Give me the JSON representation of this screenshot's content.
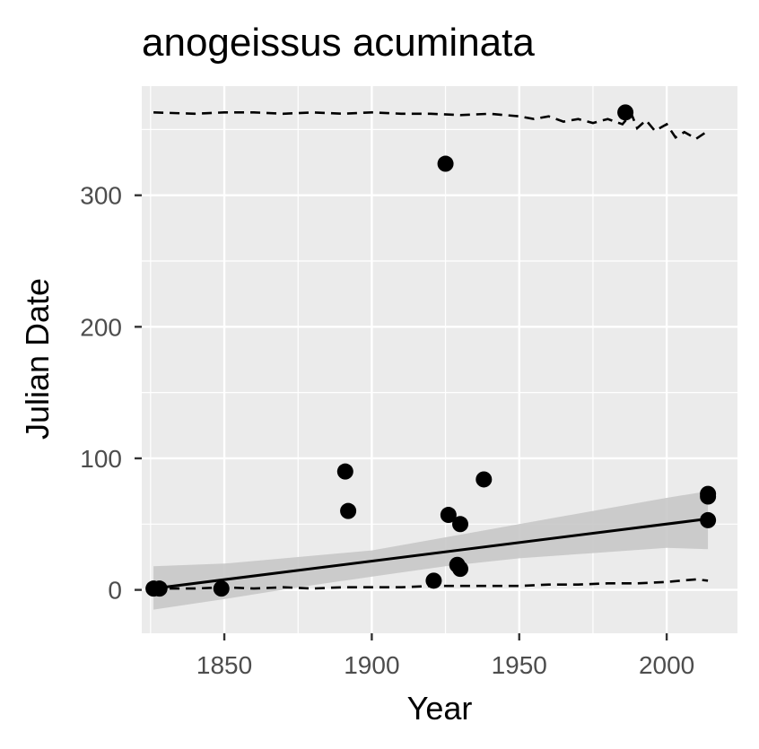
{
  "chart_data": {
    "type": "scatter",
    "title": "anogeissus acuminata",
    "xlabel": "Year",
    "ylabel": "Julian Date",
    "xlim": [
      1822,
      2024
    ],
    "ylim": [
      -33,
      383
    ],
    "x_ticks": [
      1850,
      1900,
      1950,
      2000
    ],
    "y_ticks": [
      0,
      100,
      200,
      300
    ],
    "grid": true,
    "legend": "none",
    "colors": {
      "panel": "#ebebeb",
      "grid": "#ffffff",
      "points": "#000000",
      "band": "#c8c8c8",
      "tick_text": "#4d4d4d"
    },
    "points": [
      {
        "x": 1826,
        "y": 1
      },
      {
        "x": 1828,
        "y": 1
      },
      {
        "x": 1849,
        "y": 1
      },
      {
        "x": 1891,
        "y": 90
      },
      {
        "x": 1892,
        "y": 60
      },
      {
        "x": 1921,
        "y": 7
      },
      {
        "x": 1925,
        "y": 324
      },
      {
        "x": 1926,
        "y": 57
      },
      {
        "x": 1929,
        "y": 19
      },
      {
        "x": 1930,
        "y": 16
      },
      {
        "x": 1930,
        "y": 50
      },
      {
        "x": 1938,
        "y": 84
      },
      {
        "x": 1986,
        "y": 363
      },
      {
        "x": 2014,
        "y": 73
      },
      {
        "x": 2014,
        "y": 71
      },
      {
        "x": 2014,
        "y": 53
      }
    ],
    "trend_line": {
      "x": [
        1826,
        2014
      ],
      "y": [
        1,
        54
      ]
    },
    "confidence_band": {
      "x": [
        1826,
        1850,
        1875,
        1900,
        1925,
        1950,
        1975,
        2000,
        2014
      ],
      "lower": [
        -15,
        -7,
        2,
        10,
        18,
        24,
        28,
        32,
        31
      ],
      "upper": [
        18,
        20,
        25,
        30,
        40,
        50,
        60,
        70,
        75
      ]
    },
    "upper_dashed": {
      "x": [
        1826,
        1840,
        1850,
        1860,
        1870,
        1880,
        1890,
        1900,
        1910,
        1920,
        1930,
        1940,
        1950,
        1955,
        1960,
        1965,
        1970,
        1975,
        1980,
        1985,
        1988,
        1990,
        1993,
        1996,
        2000,
        2003,
        2006,
        2010,
        2014
      ],
      "y": [
        363,
        362,
        363,
        363,
        362,
        363,
        362,
        363,
        362,
        362,
        361,
        362,
        360,
        358,
        360,
        356,
        358,
        355,
        358,
        354,
        362,
        351,
        357,
        349,
        354,
        344,
        348,
        343,
        349
      ]
    },
    "lower_dashed": {
      "x": [
        1826,
        1840,
        1850,
        1860,
        1870,
        1880,
        1890,
        1900,
        1910,
        1920,
        1930,
        1940,
        1950,
        1960,
        1970,
        1980,
        1990,
        2000,
        2005,
        2010,
        2014
      ],
      "y": [
        1,
        1,
        2,
        1,
        2,
        1,
        2,
        2,
        2,
        3,
        3,
        3,
        3,
        4,
        4,
        5,
        5,
        6,
        7,
        8,
        7
      ]
    }
  }
}
